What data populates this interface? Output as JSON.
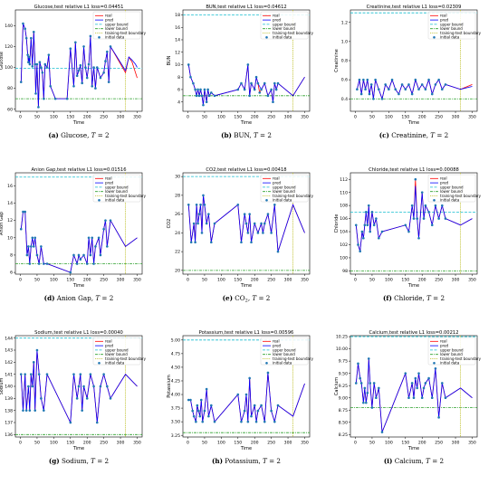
{
  "legend_labels": [
    "real",
    "pred",
    "upper bound",
    "lower bound",
    "training-test boundary",
    "initial data"
  ],
  "colors": {
    "real": "#ff0000",
    "pred": "#0000ff",
    "upper": "#17becf",
    "lower": "#2ca02c",
    "boundary": "#bcbd22",
    "initial": "#1f77b4"
  },
  "chart_data": [
    {
      "type": "line",
      "title": "Glucose,test relative L1 loss=0.04451",
      "caption": "(a) Glucose, T = 2",
      "caption_parts": [
        "(a)",
        " Glucose, ",
        "T",
        " = 2"
      ],
      "xlabel": "Time",
      "ylabel": "Glucose",
      "xlim": [
        -15,
        365
      ],
      "ylim": [
        58,
        155
      ],
      "xticks": [
        0,
        50,
        100,
        150,
        200,
        250,
        300,
        350
      ],
      "yticks": [
        60,
        80,
        100,
        120,
        140
      ],
      "upper": 99,
      "lower": 70,
      "boundary": 315,
      "x": [
        2,
        8,
        14,
        18,
        22,
        24,
        26,
        28,
        32,
        36,
        40,
        44,
        46,
        50,
        54,
        58,
        62,
        66,
        70,
        74,
        80,
        85,
        90,
        105,
        140,
        150,
        160,
        165,
        170,
        175,
        180,
        185,
        190,
        195,
        200,
        205,
        210,
        215,
        220,
        225,
        230,
        240,
        250,
        255,
        260,
        265,
        270,
        315,
        325,
        335,
        345,
        350
      ],
      "real": [
        86,
        142,
        137,
        128,
        112,
        105,
        110,
        103,
        128,
        101,
        134,
        103,
        75,
        103,
        62,
        105,
        100,
        95,
        70,
        103,
        100,
        112,
        82,
        70,
        70,
        118,
        82,
        124,
        92,
        97,
        102,
        85,
        120,
        100,
        90,
        103,
        130,
        82,
        100,
        80,
        100,
        90,
        95,
        106,
        115,
        86,
        120,
        95,
        110,
        105,
        95,
        90
      ],
      "pred": [
        86,
        142,
        137,
        128,
        112,
        105,
        110,
        103,
        128,
        101,
        134,
        103,
        75,
        103,
        62,
        105,
        100,
        95,
        70,
        103,
        100,
        112,
        82,
        70,
        70,
        118,
        82,
        124,
        92,
        97,
        102,
        85,
        120,
        100,
        90,
        103,
        130,
        82,
        100,
        80,
        100,
        90,
        95,
        106,
        115,
        86,
        120,
        97,
        110,
        107,
        103,
        100
      ]
    },
    {
      "type": "line",
      "title": "BUN,test relative L1 loss=0.04612",
      "caption": "(b) BUN, T = 2",
      "caption_parts": [
        "(b)",
        " BUN, ",
        "T",
        " = 2"
      ],
      "xlabel": "Time",
      "ylabel": "BUN",
      "xlim": [
        -15,
        365
      ],
      "ylim": [
        2.5,
        18.8
      ],
      "xticks": [
        0,
        50,
        100,
        150,
        200,
        250,
        300,
        350
      ],
      "yticks": [
        4,
        6,
        8,
        10,
        12,
        14,
        16,
        18
      ],
      "upper": 18,
      "lower": 5,
      "boundary": 315,
      "x": [
        2,
        8,
        16,
        22,
        26,
        30,
        34,
        38,
        42,
        46,
        50,
        56,
        60,
        64,
        70,
        80,
        150,
        160,
        170,
        180,
        185,
        190,
        200,
        205,
        210,
        215,
        220,
        230,
        240,
        250,
        255,
        260,
        265,
        270,
        315,
        350
      ],
      "real": [
        10,
        8,
        7,
        6,
        5,
        6,
        5,
        6,
        5,
        3.5,
        6,
        4,
        6,
        5,
        5.5,
        5,
        6,
        7,
        6,
        10,
        5,
        7,
        6,
        8,
        7,
        5.5,
        6,
        7,
        5,
        6,
        4,
        7,
        6,
        7,
        5,
        8
      ],
      "pred": [
        10,
        8,
        7,
        6,
        5,
        6,
        5,
        6,
        5,
        3.5,
        6,
        4,
        6,
        5,
        5.5,
        5,
        6,
        7,
        6,
        10,
        5,
        7,
        6,
        8,
        7,
        6.5,
        6,
        7,
        5,
        6,
        4,
        7,
        6,
        7,
        5,
        8
      ]
    },
    {
      "type": "line",
      "title": "Creatinine,test relative L1 loss=0.02309",
      "caption": "(c) Creatinine, T = 2",
      "caption_parts": [
        "(c)",
        " Creatinine, ",
        "T",
        " = 2"
      ],
      "xlabel": "Time",
      "ylabel": "Creatinine",
      "xlim": [
        -15,
        365
      ],
      "ylim": [
        0.27,
        1.33
      ],
      "xticks": [
        0,
        50,
        100,
        150,
        200,
        250,
        300,
        350
      ],
      "yticks": [
        0.4,
        0.6,
        0.8,
        1.0,
        1.2
      ],
      "upper": 1.3,
      "lower": 0.4,
      "boundary": 315,
      "x": [
        5,
        12,
        18,
        24,
        30,
        36,
        42,
        48,
        54,
        60,
        70,
        80,
        90,
        100,
        110,
        120,
        130,
        140,
        150,
        160,
        170,
        180,
        190,
        200,
        210,
        220,
        230,
        240,
        250,
        260,
        270,
        315,
        350
      ],
      "real": [
        0.5,
        0.6,
        0.45,
        0.6,
        0.5,
        0.6,
        0.45,
        0.55,
        0.4,
        0.6,
        0.5,
        0.4,
        0.55,
        0.5,
        0.6,
        0.5,
        0.45,
        0.55,
        0.5,
        0.55,
        0.45,
        0.6,
        0.5,
        0.55,
        0.5,
        0.6,
        0.45,
        0.55,
        0.6,
        0.5,
        0.55,
        0.5,
        0.55
      ],
      "pred": [
        0.5,
        0.6,
        0.45,
        0.6,
        0.5,
        0.6,
        0.45,
        0.55,
        0.4,
        0.6,
        0.5,
        0.4,
        0.55,
        0.5,
        0.6,
        0.5,
        0.45,
        0.55,
        0.5,
        0.55,
        0.45,
        0.6,
        0.5,
        0.55,
        0.5,
        0.6,
        0.45,
        0.55,
        0.6,
        0.5,
        0.55,
        0.5,
        0.53
      ]
    },
    {
      "type": "line",
      "title": "Anion Gap,test relative L1 loss=0.01516",
      "caption": "(d) Anion Gap, T = 2",
      "caption_parts": [
        "(d)",
        " Anion Gap, ",
        "T",
        " = 2"
      ],
      "xlabel": "Time",
      "ylabel": "Anion Gap",
      "xlim": [
        -15,
        365
      ],
      "ylim": [
        5.8,
        17.5
      ],
      "xticks": [
        0,
        50,
        100,
        150,
        200,
        250,
        300,
        350
      ],
      "yticks": [
        6,
        8,
        10,
        12,
        14,
        16
      ],
      "upper": 17,
      "lower": 7,
      "boundary": 315,
      "x": [
        2,
        8,
        14,
        20,
        24,
        28,
        32,
        36,
        40,
        44,
        50,
        56,
        62,
        70,
        80,
        150,
        160,
        170,
        175,
        180,
        190,
        200,
        205,
        210,
        215,
        220,
        225,
        235,
        240,
        250,
        255,
        260,
        270,
        315,
        350
      ],
      "real": [
        11,
        13,
        13,
        8,
        9,
        7,
        9,
        10,
        9,
        10,
        8,
        7,
        9,
        7,
        7,
        6,
        8,
        7,
        8,
        7.5,
        8,
        7,
        10,
        8,
        10,
        7,
        9,
        10,
        8,
        11,
        12,
        9,
        12,
        9,
        10
      ],
      "pred": [
        11,
        13,
        13,
        8,
        9,
        7,
        9,
        10,
        9,
        10,
        8,
        7,
        9,
        7,
        7,
        6,
        8,
        7,
        8,
        7.5,
        8,
        7,
        10,
        8,
        10,
        7,
        9,
        10,
        8,
        11,
        12,
        9,
        12,
        9,
        10
      ]
    },
    {
      "type": "line",
      "title": "CO2,test relative L1 loss=0.00418",
      "caption": "(e) CO2, T = 2",
      "caption_parts": [
        "(e)",
        " CO",
        "2",
        ", ",
        "T",
        " = 2"
      ],
      "xlabel": "Time",
      "ylabel": "CO2",
      "xlim": [
        -15,
        365
      ],
      "ylim": [
        19.6,
        30.4
      ],
      "xticks": [
        0,
        50,
        100,
        150,
        200,
        250,
        300,
        350
      ],
      "yticks": [
        20,
        22,
        24,
        26,
        28,
        30
      ],
      "upper": 30,
      "lower": 20,
      "boundary": 315,
      "x": [
        2,
        10,
        18,
        22,
        26,
        30,
        34,
        38,
        42,
        46,
        50,
        56,
        62,
        70,
        80,
        150,
        160,
        170,
        175,
        180,
        185,
        190,
        200,
        210,
        220,
        225,
        230,
        240,
        250,
        260,
        270,
        315,
        350
      ],
      "real": [
        27,
        23,
        25,
        23,
        27,
        25,
        26,
        27,
        24,
        28,
        27,
        25,
        26,
        23,
        25,
        27,
        23,
        26,
        25,
        24,
        26,
        23,
        25,
        24,
        25,
        24,
        25,
        26,
        24,
        27,
        22,
        27,
        24
      ],
      "pred": [
        27,
        23,
        25,
        23,
        27,
        25,
        26,
        27,
        24,
        28,
        27,
        25,
        26,
        23,
        25,
        27,
        23,
        26,
        25,
        24,
        26,
        23,
        25,
        24,
        25,
        24,
        25,
        26,
        24,
        27,
        22,
        27,
        24
      ]
    },
    {
      "type": "line",
      "title": "Chloride,test relative L1 loss=0.00088",
      "caption": "(f) Chloride, T = 2",
      "caption_parts": [
        "(f)",
        " Chloride, ",
        "T",
        " = 2"
      ],
      "xlabel": "Time",
      "ylabel": "Chloride",
      "xlim": [
        -15,
        365
      ],
      "ylim": [
        97.5,
        113
      ],
      "xticks": [
        0,
        50,
        100,
        150,
        200,
        250,
        300,
        350
      ],
      "yticks": [
        98,
        100,
        102,
        104,
        106,
        108,
        110,
        112
      ],
      "upper": 107,
      "lower": 98,
      "boundary": 315,
      "x": [
        2,
        8,
        14,
        20,
        24,
        28,
        32,
        36,
        40,
        44,
        50,
        56,
        62,
        70,
        80,
        150,
        160,
        170,
        175,
        180,
        185,
        190,
        200,
        205,
        210,
        220,
        230,
        240,
        250,
        260,
        270,
        315,
        350
      ],
      "real": [
        105,
        102,
        101,
        104,
        103,
        105,
        107,
        105,
        108,
        104,
        107,
        105,
        106,
        103,
        104,
        105,
        104,
        108,
        106,
        112,
        106,
        103,
        110,
        106,
        108,
        107,
        105,
        108,
        106,
        108,
        106,
        105,
        106
      ],
      "pred": [
        105,
        102,
        101,
        104,
        103,
        105,
        107,
        105,
        108,
        104,
        107,
        105,
        106,
        103,
        104,
        105,
        104,
        108,
        106,
        111,
        106,
        103,
        110,
        106,
        108,
        107,
        105,
        108,
        106,
        108,
        106,
        105,
        106
      ]
    },
    {
      "type": "line",
      "title": "Sodium,test relative L1 loss=0.00040",
      "caption": "(g) Sodium, T = 2",
      "caption_parts": [
        "(g)",
        " Sodium, ",
        "T",
        " = 2"
      ],
      "xlabel": "Time",
      "ylabel": "Sodium",
      "xlim": [
        -15,
        365
      ],
      "ylim": [
        135.8,
        144.2
      ],
      "xticks": [
        0,
        50,
        100,
        150,
        200,
        250,
        300,
        350
      ],
      "yticks": [
        136,
        137,
        138,
        139,
        140,
        141,
        142,
        143,
        144
      ],
      "upper": 144,
      "lower": 136,
      "boundary": 315,
      "x": [
        2,
        8,
        14,
        18,
        24,
        28,
        32,
        36,
        40,
        44,
        50,
        56,
        62,
        70,
        80,
        150,
        160,
        170,
        175,
        180,
        185,
        190,
        200,
        210,
        220,
        230,
        240,
        250,
        260,
        270,
        315,
        350
      ],
      "real": [
        141,
        138,
        141,
        138,
        140,
        138,
        141,
        140,
        142,
        138,
        143,
        141,
        139,
        138,
        141,
        137,
        141,
        139,
        140,
        141,
        138,
        140,
        139,
        141,
        140,
        137,
        140,
        141,
        140,
        139,
        141,
        140
      ],
      "pred": [
        141,
        138,
        141,
        138,
        140,
        138,
        141,
        140,
        142,
        138,
        143,
        141,
        139,
        138,
        141,
        137,
        141,
        139,
        140,
        141,
        138,
        140,
        139,
        141,
        140,
        137,
        140,
        141,
        140,
        139,
        141,
        140
      ]
    },
    {
      "type": "line",
      "title": "Potassium,test relative L1 loss=0.00596",
      "caption": "(h) Potassium, T = 2",
      "caption_parts": [
        "(h)",
        " Potassium, ",
        "T",
        " = 2"
      ],
      "xlabel": "Time",
      "ylabel": "Potassium",
      "xlim": [
        -15,
        365
      ],
      "ylim": [
        3.22,
        5.08
      ],
      "xticks": [
        0,
        50,
        100,
        150,
        200,
        250,
        300,
        350
      ],
      "yticks": [
        3.25,
        3.5,
        3.75,
        4.0,
        4.25,
        4.5,
        4.75,
        5.0
      ],
      "upper": 5.0,
      "lower": 3.3,
      "boundary": 315,
      "x": [
        2,
        8,
        14,
        18,
        24,
        28,
        32,
        36,
        40,
        44,
        50,
        56,
        62,
        70,
        80,
        150,
        160,
        170,
        175,
        180,
        185,
        190,
        200,
        205,
        210,
        220,
        230,
        240,
        250,
        260,
        270,
        315,
        350
      ],
      "real": [
        3.9,
        3.9,
        3.7,
        3.6,
        3.5,
        3.8,
        3.7,
        3.6,
        3.9,
        3.5,
        3.7,
        4.1,
        3.6,
        3.8,
        3.5,
        4.0,
        3.5,
        3.7,
        4.0,
        3.5,
        4.3,
        3.6,
        3.8,
        3.5,
        3.7,
        3.8,
        3.5,
        4.4,
        3.7,
        3.5,
        3.8,
        3.6,
        4.2
      ],
      "pred": [
        3.9,
        3.9,
        3.7,
        3.6,
        3.5,
        3.8,
        3.7,
        3.6,
        3.9,
        3.5,
        3.7,
        4.1,
        3.6,
        3.8,
        3.5,
        4.0,
        3.5,
        3.7,
        4.0,
        3.5,
        4.3,
        3.6,
        3.8,
        3.5,
        3.7,
        3.8,
        3.5,
        4.4,
        3.7,
        3.5,
        3.8,
        3.6,
        4.2
      ]
    },
    {
      "type": "line",
      "title": "Calcium,test relative L1 loss=0.00212",
      "caption": "(i) Calcium, T = 2",
      "caption_parts": [
        "(i)",
        " Calcium, ",
        "T",
        " = 2"
      ],
      "xlabel": "Time",
      "ylabel": "Calcium",
      "xlim": [
        -15,
        365
      ],
      "ylim": [
        8.2,
        10.27
      ],
      "xticks": [
        0,
        50,
        100,
        150,
        200,
        250,
        300,
        350
      ],
      "yticks": [
        8.25,
        8.5,
        8.75,
        9.0,
        9.25,
        9.5,
        9.75,
        10.0,
        10.25
      ],
      "upper": 10.25,
      "lower": 8.8,
      "boundary": 315,
      "x": [
        2,
        8,
        14,
        18,
        24,
        28,
        32,
        36,
        40,
        44,
        50,
        56,
        62,
        70,
        80,
        150,
        160,
        170,
        175,
        180,
        185,
        190,
        200,
        205,
        210,
        220,
        230,
        240,
        250,
        260,
        270,
        315,
        350
      ],
      "real": [
        9.3,
        9.7,
        9.4,
        9.3,
        8.9,
        9.2,
        8.9,
        9.1,
        9.8,
        9.3,
        8.8,
        9.3,
        9.0,
        9.2,
        8.3,
        9.5,
        9.0,
        9.3,
        9.0,
        9.4,
        9.2,
        9.5,
        9.0,
        9.2,
        9.3,
        9.4,
        9.0,
        9.6,
        8.6,
        9.3,
        9.0,
        9.2,
        9.0
      ],
      "pred": [
        9.3,
        9.7,
        9.4,
        9.3,
        8.9,
        9.2,
        8.9,
        9.1,
        9.8,
        9.3,
        8.8,
        9.3,
        9.0,
        9.2,
        8.3,
        9.5,
        9.0,
        9.3,
        9.0,
        9.4,
        9.2,
        9.5,
        9.0,
        9.2,
        9.3,
        9.4,
        9.0,
        9.6,
        8.6,
        9.3,
        9.0,
        9.2,
        9.0
      ]
    }
  ]
}
